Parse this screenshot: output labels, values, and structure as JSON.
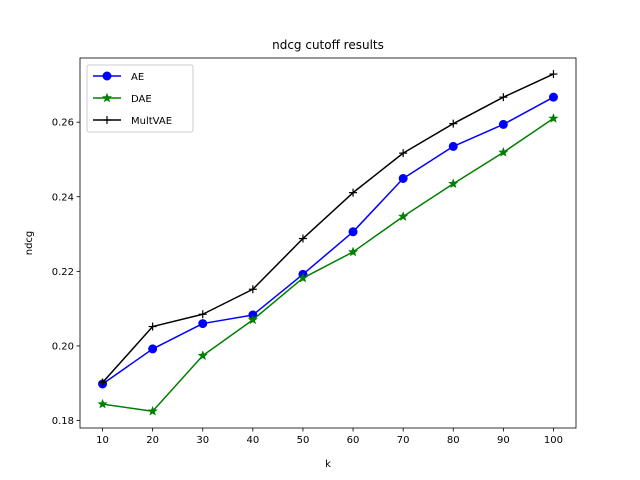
{
  "chart_data": {
    "type": "line",
    "title": "ndcg cutoff results",
    "xlabel": "k",
    "ylabel": "ndcg",
    "x": [
      10,
      20,
      30,
      40,
      50,
      60,
      70,
      80,
      90,
      100
    ],
    "xlim": [
      5.5,
      104.5
    ],
    "ylim": [
      0.178,
      0.2772
    ],
    "xticks": [
      10,
      20,
      30,
      40,
      50,
      60,
      70,
      80,
      90,
      100
    ],
    "yticks": [
      0.18,
      0.2,
      0.22,
      0.24,
      0.26
    ],
    "ytick_labels": [
      "0.18",
      "0.20",
      "0.22",
      "0.24",
      "0.26"
    ],
    "grid": false,
    "legend_position": "top-left",
    "series": [
      {
        "name": "AE",
        "color": "#0000ff",
        "marker": "circle",
        "values": [
          0.1898,
          0.1992,
          0.206,
          0.2083,
          0.2192,
          0.2306,
          0.2449,
          0.2535,
          0.2594,
          0.2667
        ]
      },
      {
        "name": "DAE",
        "color": "#008000",
        "marker": "star",
        "values": [
          0.1844,
          0.1825,
          0.1974,
          0.207,
          0.2182,
          0.2252,
          0.2347,
          0.2435,
          0.2519,
          0.261
        ]
      },
      {
        "name": "MultVAE",
        "color": "#000000",
        "marker": "plus",
        "values": [
          0.1902,
          0.2052,
          0.2085,
          0.2152,
          0.2288,
          0.2411,
          0.2517,
          0.2596,
          0.2667,
          0.2729
        ]
      }
    ]
  }
}
